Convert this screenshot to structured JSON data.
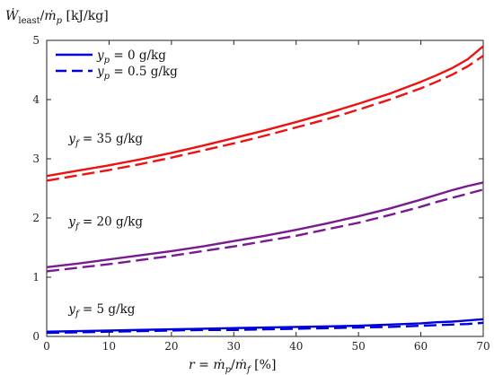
{
  "chart_data": {
    "type": "line",
    "xlabel_parts": {
      "r": "r",
      "eq": " = ",
      "mp": "ṁ",
      "p": "p",
      "slash": "/",
      "mf": "ṁ",
      "f": "f",
      "unit": " [%]"
    },
    "ylabel_parts": {
      "W": "Ẇ",
      "least": "least",
      "slash": "/",
      "m": "ṁ",
      "p": "p",
      "unit": " [kJ/kg]"
    },
    "xlim": [
      0,
      70
    ],
    "ylim": [
      0,
      5
    ],
    "xticks": [
      0,
      10,
      20,
      30,
      40,
      50,
      60,
      70
    ],
    "yticks": [
      0,
      1,
      2,
      3,
      4,
      5
    ],
    "grid": false,
    "legend": {
      "placement": "top-left",
      "entries": [
        {
          "sym": "y",
          "sub": "p",
          "rest": " = 0 g/kg",
          "style": "solid",
          "color": "#0000dd"
        },
        {
          "sym": "y",
          "sub": "p",
          "rest": " = 0.5 g/kg",
          "style": "dashed",
          "color": "#0000dd"
        }
      ]
    },
    "annotations": [
      {
        "sym": "y",
        "sub": "f",
        "rest": " = 35 g/kg",
        "x": 3.5,
        "y": 3.35
      },
      {
        "sym": "y",
        "sub": "f",
        "rest": " = 20 g/kg",
        "x": 3.5,
        "y": 1.95
      },
      {
        "sym": "y",
        "sub": "f",
        "rest": " = 5 g/kg",
        "x": 3.5,
        "y": 0.47
      }
    ],
    "x": [
      0,
      5,
      10,
      15,
      20,
      25,
      30,
      35,
      40,
      45,
      50,
      55,
      60,
      62.5,
      65,
      67.5,
      70
    ],
    "series": [
      {
        "group": "yf35",
        "style": "solid",
        "color": "#ee1111",
        "values": [
          2.71,
          2.8,
          2.89,
          2.99,
          3.1,
          3.22,
          3.35,
          3.48,
          3.62,
          3.77,
          3.93,
          4.1,
          4.3,
          4.41,
          4.53,
          4.68,
          4.9
        ]
      },
      {
        "group": "yf35",
        "style": "dashed",
        "color": "#ee1111",
        "values": [
          2.63,
          2.72,
          2.81,
          2.91,
          3.02,
          3.14,
          3.26,
          3.39,
          3.53,
          3.67,
          3.83,
          4.0,
          4.19,
          4.3,
          4.42,
          4.56,
          4.74
        ]
      },
      {
        "group": "yf20",
        "style": "solid",
        "color": "#7a1a90",
        "values": [
          1.17,
          1.23,
          1.3,
          1.37,
          1.44,
          1.52,
          1.61,
          1.7,
          1.8,
          1.91,
          2.03,
          2.16,
          2.31,
          2.39,
          2.47,
          2.54,
          2.6
        ]
      },
      {
        "group": "yf20",
        "style": "dashed",
        "color": "#7a1a90",
        "values": [
          1.1,
          1.16,
          1.22,
          1.29,
          1.36,
          1.44,
          1.52,
          1.61,
          1.7,
          1.81,
          1.92,
          2.05,
          2.19,
          2.27,
          2.34,
          2.41,
          2.48
        ]
      },
      {
        "group": "yf5",
        "style": "solid",
        "color": "#0000dd",
        "values": [
          0.08,
          0.09,
          0.1,
          0.11,
          0.12,
          0.13,
          0.14,
          0.15,
          0.16,
          0.17,
          0.18,
          0.2,
          0.22,
          0.24,
          0.25,
          0.27,
          0.29
        ]
      },
      {
        "group": "yf5",
        "style": "dashed",
        "color": "#0000dd",
        "values": [
          0.06,
          0.07,
          0.08,
          0.09,
          0.1,
          0.11,
          0.11,
          0.12,
          0.13,
          0.14,
          0.15,
          0.16,
          0.18,
          0.19,
          0.2,
          0.21,
          0.23
        ]
      }
    ]
  }
}
